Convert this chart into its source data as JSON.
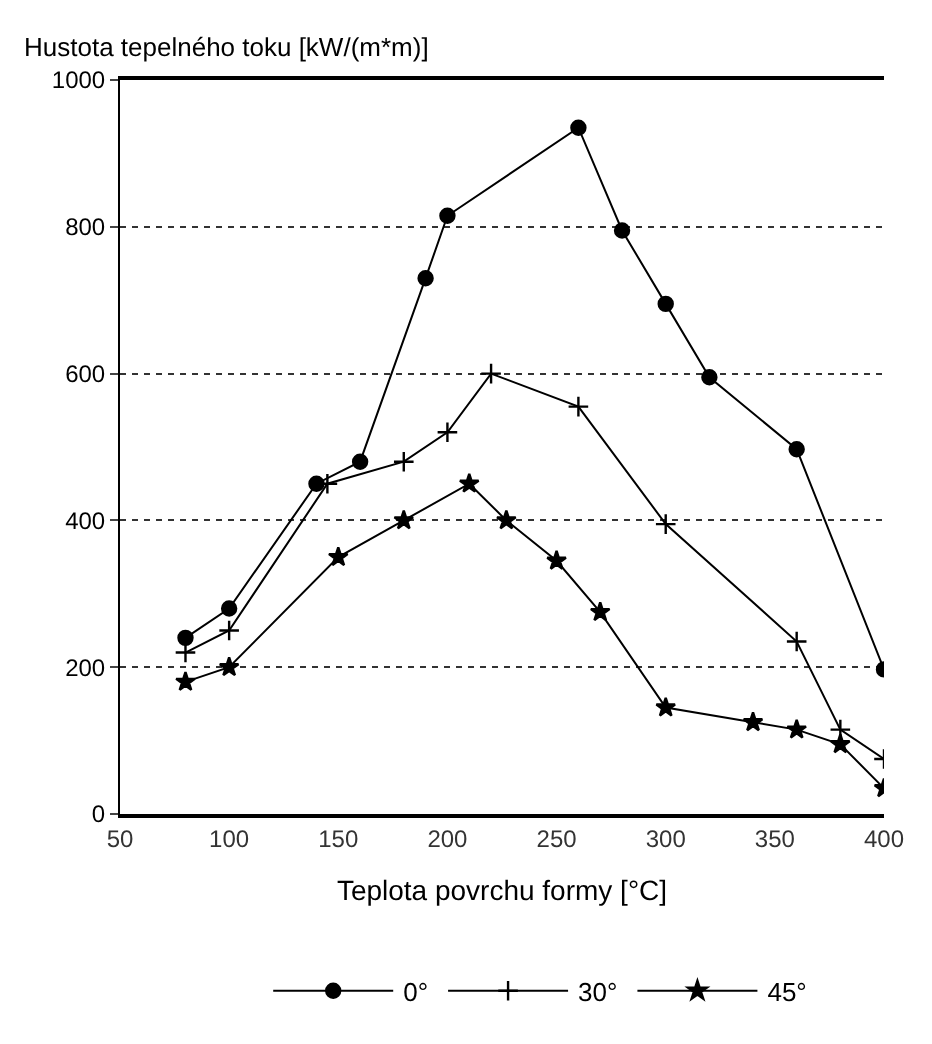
{
  "chart_data": {
    "type": "line",
    "ylabel": "Hustota tepelného toku [kW/(m*m)]",
    "xlabel": "Teplota povrchu formy [°C]",
    "xlim": [
      50,
      400
    ],
    "xticks": [
      50,
      100,
      150,
      200,
      250,
      300,
      350,
      400
    ],
    "ylim": [
      0,
      1000
    ],
    "yticks": [
      0,
      200,
      400,
      600,
      800,
      1000
    ],
    "grid": "y",
    "legend": "bottom",
    "series": [
      {
        "name": "0°",
        "color": "#000000",
        "marker": "circle",
        "x": [
          80,
          100,
          140,
          160,
          190,
          200,
          260,
          280,
          300,
          320,
          360,
          400
        ],
        "values": [
          240,
          280,
          450,
          480,
          730,
          815,
          935,
          795,
          695,
          595,
          497,
          197
        ]
      },
      {
        "name": "30°",
        "color": "#000000",
        "marker": "cross",
        "x": [
          80,
          100,
          145,
          180,
          200,
          220,
          260,
          300,
          360,
          380,
          400
        ],
        "values": [
          220,
          250,
          450,
          480,
          520,
          600,
          555,
          395,
          235,
          115,
          75
        ]
      },
      {
        "name": "45°",
        "color": "#000000",
        "marker": "star",
        "x": [
          80,
          100,
          150,
          180,
          210,
          227,
          250,
          270,
          300,
          340,
          360,
          380,
          400
        ],
        "values": [
          180,
          200,
          350,
          400,
          450,
          400,
          345,
          275,
          145,
          125,
          115,
          95,
          35
        ]
      }
    ]
  }
}
